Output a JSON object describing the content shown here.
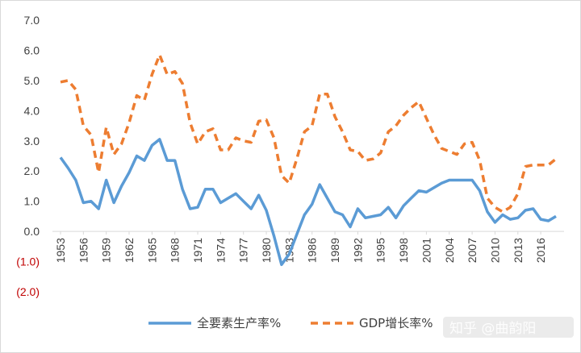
{
  "chart_data": {
    "type": "line",
    "title": "",
    "xlabel": "",
    "ylabel": "",
    "x": [
      1953,
      1954,
      1955,
      1956,
      1957,
      1958,
      1959,
      1960,
      1961,
      1962,
      1963,
      1964,
      1965,
      1966,
      1967,
      1968,
      1969,
      1970,
      1971,
      1972,
      1973,
      1974,
      1975,
      1976,
      1977,
      1978,
      1979,
      1980,
      1981,
      1982,
      1983,
      1984,
      1985,
      1986,
      1987,
      1988,
      1989,
      1990,
      1991,
      1992,
      1993,
      1994,
      1995,
      1996,
      1997,
      1998,
      1999,
      2000,
      2001,
      2002,
      2003,
      2004,
      2005,
      2006,
      2007,
      2008,
      2009,
      2010,
      2011,
      2012,
      2013,
      2014,
      2015,
      2016,
      2017,
      2018
    ],
    "x_tick_labels": [
      "1953",
      "1956",
      "1959",
      "1962",
      "1965",
      "1968",
      "1971",
      "1974",
      "1977",
      "1980",
      "1983",
      "1986",
      "1989",
      "1992",
      "1995",
      "1998",
      "2001",
      "2004",
      "2007",
      "2010",
      "2013",
      "2016"
    ],
    "y_tick_labels": [
      "7.0",
      "6.0",
      "5.0",
      "4.0",
      "3.0",
      "2.0",
      "1.0",
      "0.0",
      "(1.0)",
      "(2.0)"
    ],
    "y_tick_values": [
      7,
      6,
      5,
      4,
      3,
      2,
      1,
      0,
      -1,
      -2
    ],
    "ylim": [
      -2,
      7
    ],
    "grid": false,
    "legend_position": "bottom",
    "series": [
      {
        "name": "全要素生产率%",
        "color": "#5b9bd5",
        "dash": "solid",
        "values": [
          2.45,
          2.1,
          1.7,
          0.95,
          1.0,
          0.75,
          1.7,
          0.95,
          1.5,
          1.95,
          2.5,
          2.35,
          2.85,
          3.05,
          2.35,
          2.35,
          1.4,
          0.75,
          0.8,
          1.4,
          1.4,
          0.95,
          1.1,
          1.25,
          1.0,
          0.75,
          1.2,
          0.7,
          -0.15,
          -1.1,
          -0.75,
          -0.1,
          0.55,
          0.9,
          1.55,
          1.1,
          0.65,
          0.55,
          0.15,
          0.75,
          0.45,
          0.5,
          0.55,
          0.8,
          0.45,
          0.85,
          1.1,
          1.35,
          1.3,
          1.45,
          1.6,
          1.7,
          1.7,
          1.7,
          1.7,
          1.35,
          0.65,
          0.3,
          0.55,
          0.4,
          0.45,
          0.7,
          0.75,
          0.4,
          0.35,
          0.5
        ]
      },
      {
        "name": "GDP增长率%",
        "color": "#ed7d31",
        "dash": "dashed",
        "values": [
          4.95,
          5.0,
          4.7,
          3.5,
          3.2,
          1.95,
          3.45,
          2.55,
          2.9,
          3.6,
          4.5,
          4.35,
          5.2,
          5.85,
          5.2,
          5.3,
          4.9,
          3.6,
          2.9,
          3.3,
          3.4,
          2.7,
          2.7,
          3.1,
          3.0,
          2.95,
          3.65,
          3.7,
          3.1,
          1.85,
          1.6,
          2.4,
          3.3,
          3.5,
          4.55,
          4.55,
          3.8,
          3.3,
          2.7,
          2.65,
          2.35,
          2.4,
          2.6,
          3.3,
          3.5,
          3.85,
          4.1,
          4.3,
          3.75,
          3.2,
          2.75,
          2.65,
          2.55,
          2.9,
          2.95,
          2.35,
          1.1,
          0.8,
          0.65,
          0.8,
          1.25,
          2.15,
          2.2,
          2.2,
          2.2,
          2.4
        ]
      }
    ]
  },
  "watermark": "知乎 @曲韵阳"
}
